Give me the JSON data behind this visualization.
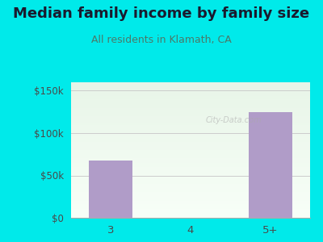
{
  "title": "Median family income by family size",
  "subtitle": "All residents in Klamath, CA",
  "categories": [
    "3",
    "4",
    "5+"
  ],
  "values": [
    68000,
    0,
    125000
  ],
  "bar_color": "#b09cc8",
  "outer_bg": "#00eaea",
  "chart_bg_top": "#e8f5e8",
  "chart_bg_bottom": "#f8fff8",
  "title_color": "#1a1a2e",
  "subtitle_color": "#4a7a6a",
  "axis_label_color": "#4a4a4a",
  "yticks": [
    0,
    50000,
    100000,
    150000
  ],
  "ytick_labels": [
    "$0",
    "$50k",
    "$100k",
    "$150k"
  ],
  "ylim": [
    0,
    160000
  ],
  "watermark": "City-Data.com",
  "title_fontsize": 13,
  "subtitle_fontsize": 9
}
